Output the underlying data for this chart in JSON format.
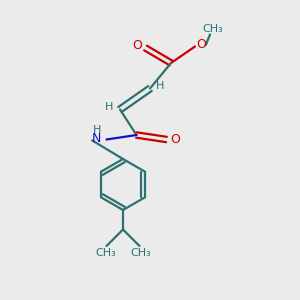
{
  "background_color": "#ebebeb",
  "bond_color": "#2d7070",
  "o_color": "#cc0000",
  "n_color": "#1010cc",
  "figsize": [
    3.0,
    3.0
  ],
  "dpi": 100,
  "xlim": [
    0,
    10
  ],
  "ylim": [
    0,
    10
  ]
}
